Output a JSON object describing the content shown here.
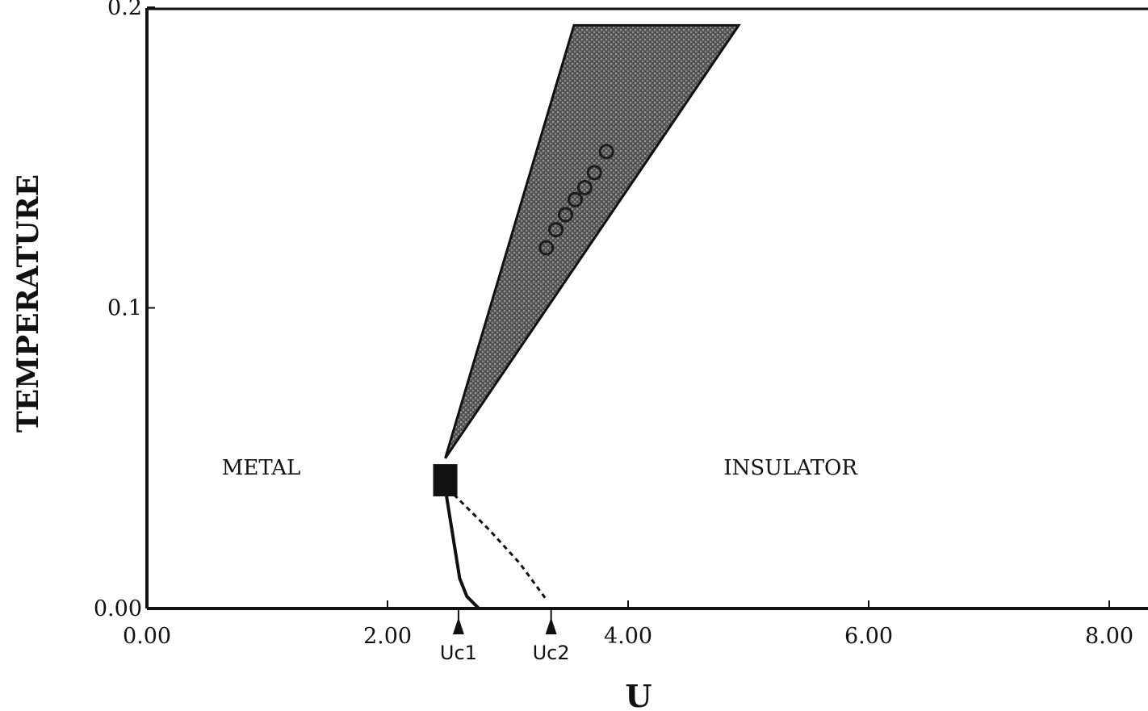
{
  "chart_data": {
    "type": "phase_diagram",
    "xlabel": "U",
    "ylabel": "TEMPERATURE",
    "xlim": [
      0,
      8.2
    ],
    "ylim": [
      0,
      0.2
    ],
    "x_ticks": [
      {
        "value": 0,
        "label": "0.00"
      },
      {
        "value": 2,
        "label": "2.00"
      },
      {
        "value": 4,
        "label": "4.00"
      },
      {
        "value": 6,
        "label": "6.00"
      },
      {
        "value": 8,
        "label": "8.00"
      }
    ],
    "y_ticks": [
      {
        "value": 0,
        "label": "0.00"
      },
      {
        "value": 0.1,
        "label": "0.1"
      },
      {
        "value": 0.2,
        "label": "0.2"
      }
    ],
    "regions": [
      {
        "label": "METAL",
        "u": 0.95,
        "t": 0.047
      },
      {
        "label": "INSULATOR",
        "u": 5.35,
        "t": 0.047
      }
    ],
    "critical_point": {
      "u": 2.48,
      "t": 0.044
    },
    "coexistence_region": {
      "polygon": [
        {
          "u": 2.48,
          "t": 0.05
        },
        {
          "u": 3.55,
          "t": 0.194
        },
        {
          "u": 4.92,
          "t": 0.194
        }
      ]
    },
    "crossover_points": [
      {
        "u": 3.32,
        "t": 0.12
      },
      {
        "u": 3.4,
        "t": 0.126
      },
      {
        "u": 3.48,
        "t": 0.131
      },
      {
        "u": 3.56,
        "t": 0.136
      },
      {
        "u": 3.64,
        "t": 0.14
      },
      {
        "u": 3.72,
        "t": 0.145
      },
      {
        "u": 3.82,
        "t": 0.152
      }
    ],
    "transition_line_solid": [
      {
        "u": 2.48,
        "t": 0.04
      },
      {
        "u": 2.52,
        "t": 0.03
      },
      {
        "u": 2.56,
        "t": 0.02
      },
      {
        "u": 2.6,
        "t": 0.01
      },
      {
        "u": 2.66,
        "t": 0.004
      },
      {
        "u": 2.76,
        "t": 0.0
      }
    ],
    "transition_line_dashed": [
      {
        "u": 2.5,
        "t": 0.04
      },
      {
        "u": 2.85,
        "t": 0.026
      },
      {
        "u": 3.1,
        "t": 0.015
      },
      {
        "u": 3.32,
        "t": 0.003
      }
    ],
    "markers": [
      {
        "label": "Uc1",
        "u": 2.59
      },
      {
        "label": "Uc2",
        "u": 3.36
      }
    ]
  }
}
